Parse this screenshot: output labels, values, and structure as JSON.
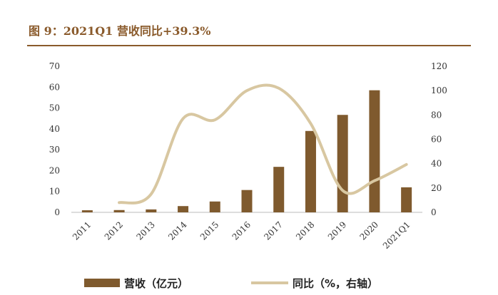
{
  "figure": {
    "title": "图 9：2021Q1 营收同比+39.3%"
  },
  "colors": {
    "bar": "#7f5a2e",
    "line": "#d8c7a1",
    "accent": "#8a5a2b"
  },
  "chart_data": {
    "type": "bar",
    "title": "图 9：2021Q1 营收同比+39.3%",
    "categories": [
      "2011",
      "2012",
      "2013",
      "2014",
      "2015",
      "2016",
      "2017",
      "2018",
      "2019",
      "2020",
      "2021Q1"
    ],
    "series": [
      {
        "name": "营收（亿元）",
        "type": "bar",
        "axis": "left",
        "values": [
          1.0,
          1.1,
          1.4,
          3.0,
          5.2,
          10.7,
          21.8,
          39.0,
          46.7,
          58.5,
          12.0
        ]
      },
      {
        "name": "同比（%，右轴）",
        "type": "line",
        "axis": "right",
        "values": [
          null,
          8,
          15,
          77,
          76,
          100,
          102,
          73,
          18,
          26,
          39.3
        ]
      }
    ],
    "left_axis": {
      "ticks": [
        "0",
        "10",
        "20",
        "30",
        "40",
        "50",
        "60",
        "70"
      ],
      "ylim": [
        0,
        70
      ]
    },
    "right_axis": {
      "ticks": [
        "0",
        "20",
        "40",
        "60",
        "80",
        "100",
        "120"
      ],
      "ylim": [
        0,
        120
      ]
    },
    "grid": false,
    "legend": {
      "placement": "bottom",
      "items": [
        "营收（亿元）",
        "同比（%，右轴）"
      ]
    }
  }
}
